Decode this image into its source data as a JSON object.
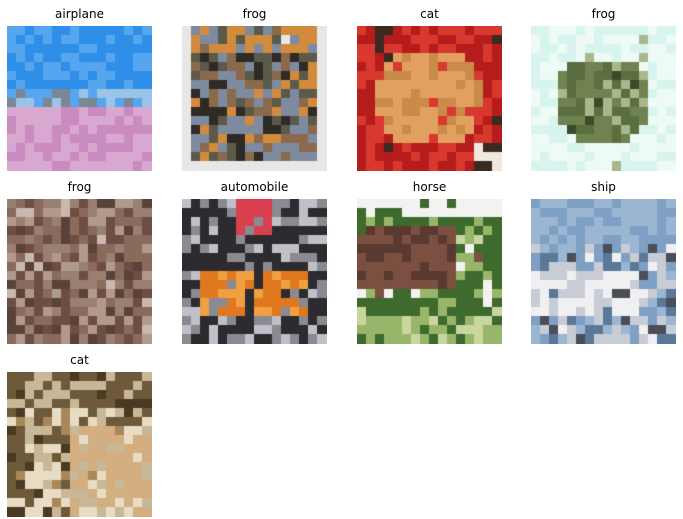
{
  "images": [
    {
      "label": "airplane",
      "palette": [
        "#2f8ee8",
        "#55a6ee",
        "#9bc4e6",
        "#7a8795",
        "#d9a8d0",
        "#c98bc0"
      ],
      "scene": "sky-ground"
    },
    {
      "label": "frog",
      "palette": [
        "#e7e7e7",
        "#d28a3c",
        "#7d8aa0",
        "#5b5a4a",
        "#8a6a4a",
        "#2e2a26"
      ],
      "scene": "busy-bordered"
    },
    {
      "label": "cat",
      "palette": [
        "#b51c1c",
        "#d9382e",
        "#e2a060",
        "#c98a4a",
        "#f0e8e0",
        "#3a2a20"
      ],
      "scene": "object-center"
    },
    {
      "label": "frog",
      "palette": [
        "#eefaf6",
        "#d8f4ee",
        "#5b6e40",
        "#6f8250",
        "#a9b88a",
        "#3d4a2a"
      ],
      "scene": "object-light"
    },
    {
      "label": "frog",
      "palette": [
        "#8a6a5a",
        "#6e4e44",
        "#b19a8c",
        "#5a4238",
        "#9a8070",
        "#c9b8ae"
      ],
      "scene": "busy"
    },
    {
      "label": "automobile",
      "palette": [
        "#2c2c30",
        "#e07820",
        "#f0a040",
        "#8a8a90",
        "#d84050",
        "#c0c0c8"
      ],
      "scene": "busy-dark"
    },
    {
      "label": "horse",
      "palette": [
        "#f2f2f0",
        "#7b5040",
        "#5a3a30",
        "#3f6a2e",
        "#97b66a",
        "#c9d6a0"
      ],
      "scene": "horse"
    },
    {
      "label": "ship",
      "palette": [
        "#7ea0c4",
        "#9ab6d2",
        "#f0f0f2",
        "#c8ccd4",
        "#4a4e58",
        "#5c7898"
      ],
      "scene": "ship"
    },
    {
      "label": "cat",
      "palette": [
        "#6e5a3a",
        "#c8b898",
        "#e8dcc4",
        "#d2ae80",
        "#4a3a24",
        "#a88858"
      ],
      "scene": "cat2"
    }
  ]
}
